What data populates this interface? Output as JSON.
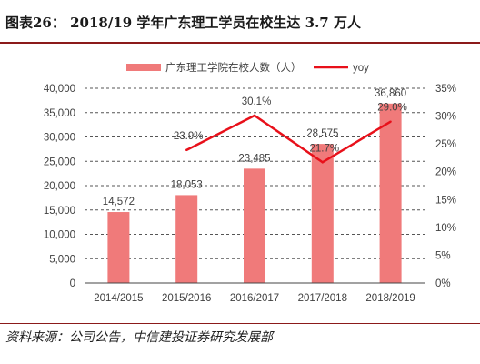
{
  "header": {
    "title": "图表26：  2018/19 学年广东理工学员在校生达 3.7 万人"
  },
  "footer": {
    "source": "资料来源：公司公告，中信建投证券研究发展部"
  },
  "colors": {
    "bar": "#f07a7a",
    "line": "#e8101a",
    "rule": "#8b1a1a",
    "grid": "#555555",
    "text": "#404040"
  },
  "chart_data": {
    "type": "bar",
    "categories": [
      "2014/2015",
      "2015/2016",
      "2016/2017",
      "2017/2018",
      "2018/2019"
    ],
    "series": [
      {
        "name": "广东理工学院在校人数（人）",
        "type": "bar",
        "axis": "left",
        "values": [
          14572,
          18053,
          23485,
          28575,
          36860
        ],
        "labels": [
          "14,572",
          "18,053",
          "23,485",
          "28,575",
          "36,860"
        ]
      },
      {
        "name": "yoy",
        "type": "line",
        "axis": "right",
        "values": [
          null,
          23.9,
          30.1,
          21.7,
          29.0
        ],
        "labels": [
          "",
          "23.9%",
          "30.1%",
          "21.7%",
          "29.0%"
        ]
      }
    ],
    "y_left": {
      "min": 0,
      "max": 40000,
      "ticks": [
        0,
        5000,
        10000,
        15000,
        20000,
        25000,
        30000,
        35000,
        40000
      ],
      "tick_labels": [
        "0",
        "5,000",
        "10,000",
        "15,000",
        "20,000",
        "25,000",
        "30,000",
        "35,000",
        "40,000"
      ]
    },
    "y_right": {
      "min": 0,
      "max": 35,
      "ticks": [
        0,
        5,
        10,
        15,
        20,
        25,
        30,
        35
      ],
      "tick_labels": [
        "0%",
        "5%",
        "10%",
        "15%",
        "20%",
        "25%",
        "30%",
        "35%"
      ]
    },
    "grid": "dashed-horizontal",
    "legend": "top"
  }
}
